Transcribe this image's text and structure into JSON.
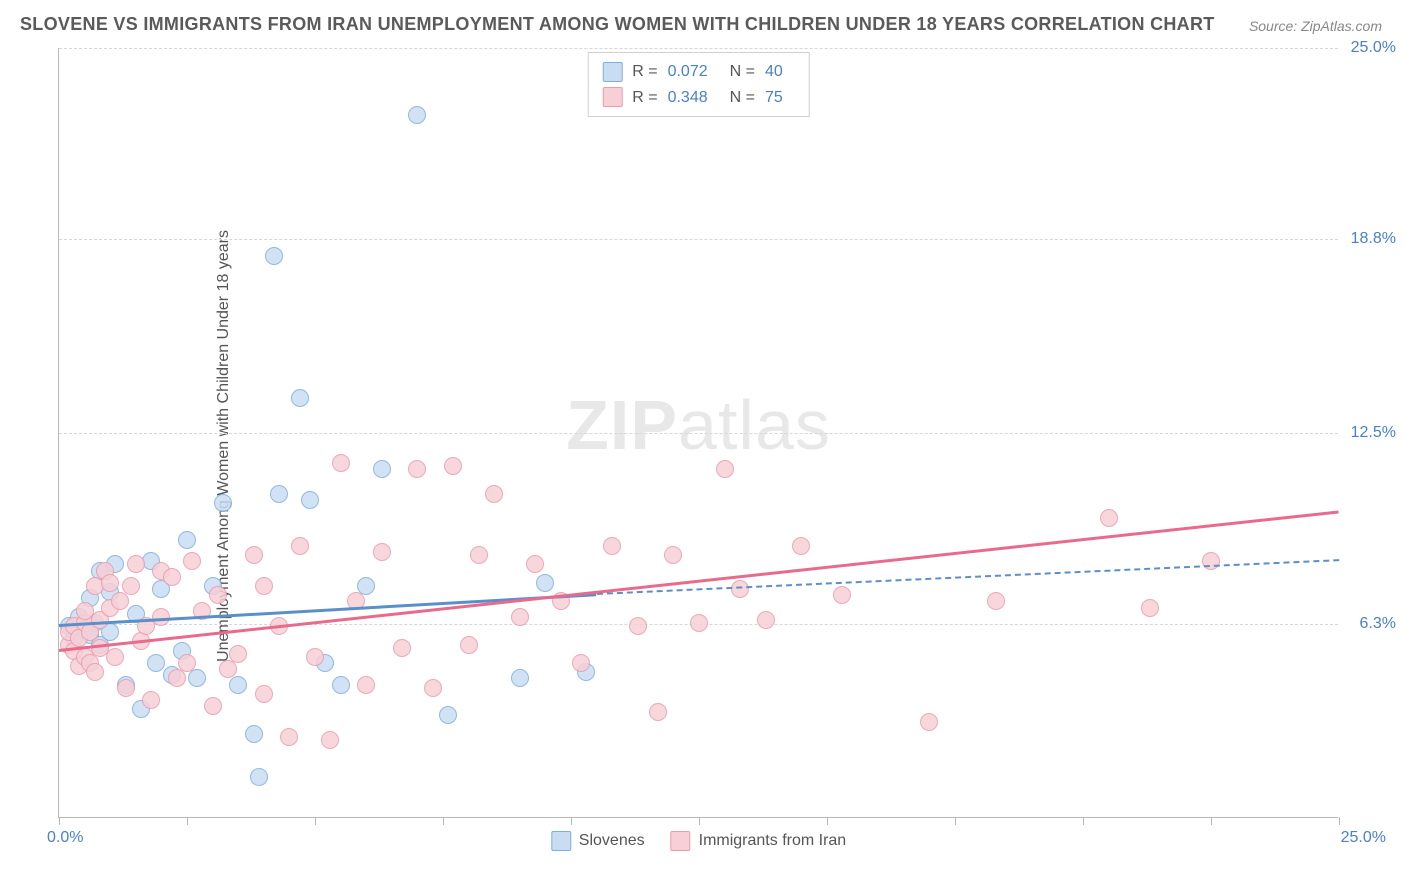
{
  "title": "SLOVENE VS IMMIGRANTS FROM IRAN UNEMPLOYMENT AMONG WOMEN WITH CHILDREN UNDER 18 YEARS CORRELATION CHART",
  "source": "Source: ZipAtlas.com",
  "y_axis_label": "Unemployment Among Women with Children Under 18 years",
  "watermark_bold": "ZIP",
  "watermark_rest": "atlas",
  "chart": {
    "type": "scatter",
    "xlim": [
      0,
      25
    ],
    "ylim": [
      0,
      25
    ],
    "x_origin_label": "0.0%",
    "x_max_label": "25.0%",
    "y_ticks": [
      {
        "value": 6.3,
        "label": "6.3%"
      },
      {
        "value": 12.5,
        "label": "12.5%"
      },
      {
        "value": 18.8,
        "label": "18.8%"
      },
      {
        "value": 25.0,
        "label": "25.0%"
      }
    ],
    "x_tick_positions": [
      0,
      2.5,
      5.0,
      7.5,
      10.0,
      12.5,
      15.0,
      17.5,
      20.0,
      22.5,
      25.0
    ],
    "background_color": "#ffffff",
    "grid_color": "#d7d7d7",
    "axis_color": "#b8b8b8",
    "tick_label_color": "#4a7fc9",
    "series": [
      {
        "name": "Slovenes",
        "fill": "#c8ddf2",
        "stroke": "#7faedb",
        "r_value": "0.072",
        "n_value": "40",
        "trend": {
          "x1": 0,
          "y1": 6.3,
          "x2": 10.5,
          "y2": 7.3,
          "dash": false,
          "color": "#5b8fca",
          "width": 3
        },
        "trend_ext": {
          "x1": 10.5,
          "y1": 7.3,
          "x2": 25,
          "y2": 8.4,
          "dash": true,
          "color": "#5b8fca",
          "width": 2
        },
        "points": [
          [
            0.2,
            6.2
          ],
          [
            0.3,
            5.8
          ],
          [
            0.4,
            6.5
          ],
          [
            0.5,
            6.1
          ],
          [
            0.6,
            5.9
          ],
          [
            0.6,
            7.1
          ],
          [
            0.7,
            6.3
          ],
          [
            0.8,
            5.6
          ],
          [
            0.8,
            8.0
          ],
          [
            1.0,
            6.0
          ],
          [
            1.0,
            7.3
          ],
          [
            1.1,
            8.2
          ],
          [
            1.3,
            4.3
          ],
          [
            1.5,
            6.6
          ],
          [
            1.6,
            3.5
          ],
          [
            1.8,
            8.3
          ],
          [
            1.9,
            5.0
          ],
          [
            2.0,
            7.4
          ],
          [
            2.2,
            4.6
          ],
          [
            2.4,
            5.4
          ],
          [
            2.5,
            9.0
          ],
          [
            2.7,
            4.5
          ],
          [
            3.0,
            7.5
          ],
          [
            3.2,
            10.2
          ],
          [
            3.5,
            4.3
          ],
          [
            3.8,
            2.7
          ],
          [
            3.9,
            1.3
          ],
          [
            4.2,
            18.2
          ],
          [
            4.3,
            10.5
          ],
          [
            4.7,
            13.6
          ],
          [
            4.9,
            10.3
          ],
          [
            5.2,
            5.0
          ],
          [
            5.5,
            4.3
          ],
          [
            6.0,
            7.5
          ],
          [
            6.3,
            11.3
          ],
          [
            7.0,
            22.8
          ],
          [
            7.6,
            3.3
          ],
          [
            9.0,
            4.5
          ],
          [
            9.5,
            7.6
          ],
          [
            10.3,
            4.7
          ]
        ]
      },
      {
        "name": "Immigrants from Iran",
        "fill": "#f6cfd7",
        "stroke": "#e99bac",
        "r_value": "0.348",
        "n_value": "75",
        "trend": {
          "x1": 0,
          "y1": 5.5,
          "x2": 25,
          "y2": 10.0,
          "dash": false,
          "color": "#e86b8c",
          "width": 3
        },
        "points": [
          [
            0.2,
            5.6
          ],
          [
            0.2,
            6.0
          ],
          [
            0.3,
            5.4
          ],
          [
            0.3,
            6.2
          ],
          [
            0.4,
            5.8
          ],
          [
            0.4,
            4.9
          ],
          [
            0.5,
            6.3
          ],
          [
            0.5,
            5.2
          ],
          [
            0.5,
            6.7
          ],
          [
            0.6,
            6.0
          ],
          [
            0.6,
            5.0
          ],
          [
            0.7,
            7.5
          ],
          [
            0.7,
            4.7
          ],
          [
            0.8,
            6.4
          ],
          [
            0.8,
            5.5
          ],
          [
            0.9,
            8.0
          ],
          [
            1.0,
            6.8
          ],
          [
            1.0,
            7.6
          ],
          [
            1.1,
            5.2
          ],
          [
            1.2,
            7.0
          ],
          [
            1.3,
            4.2
          ],
          [
            1.4,
            7.5
          ],
          [
            1.5,
            8.2
          ],
          [
            1.6,
            5.7
          ],
          [
            1.7,
            6.2
          ],
          [
            1.8,
            3.8
          ],
          [
            2.0,
            8.0
          ],
          [
            2.0,
            6.5
          ],
          [
            2.2,
            7.8
          ],
          [
            2.3,
            4.5
          ],
          [
            2.5,
            5.0
          ],
          [
            2.6,
            8.3
          ],
          [
            2.8,
            6.7
          ],
          [
            3.0,
            3.6
          ],
          [
            3.1,
            7.2
          ],
          [
            3.3,
            4.8
          ],
          [
            3.5,
            5.3
          ],
          [
            3.8,
            8.5
          ],
          [
            4.0,
            4.0
          ],
          [
            4.0,
            7.5
          ],
          [
            4.3,
            6.2
          ],
          [
            4.5,
            2.6
          ],
          [
            4.7,
            8.8
          ],
          [
            5.0,
            5.2
          ],
          [
            5.3,
            2.5
          ],
          [
            5.5,
            11.5
          ],
          [
            5.8,
            7.0
          ],
          [
            6.0,
            4.3
          ],
          [
            6.3,
            8.6
          ],
          [
            6.7,
            5.5
          ],
          [
            7.0,
            11.3
          ],
          [
            7.3,
            4.2
          ],
          [
            7.7,
            11.4
          ],
          [
            8.0,
            5.6
          ],
          [
            8.2,
            8.5
          ],
          [
            8.5,
            10.5
          ],
          [
            9.0,
            6.5
          ],
          [
            9.3,
            8.2
          ],
          [
            9.8,
            7.0
          ],
          [
            10.2,
            5.0
          ],
          [
            10.8,
            8.8
          ],
          [
            11.3,
            6.2
          ],
          [
            11.7,
            3.4
          ],
          [
            12.0,
            8.5
          ],
          [
            12.5,
            6.3
          ],
          [
            13.0,
            11.3
          ],
          [
            13.3,
            7.4
          ],
          [
            13.8,
            6.4
          ],
          [
            14.5,
            8.8
          ],
          [
            15.3,
            7.2
          ],
          [
            17.0,
            3.1
          ],
          [
            18.3,
            7.0
          ],
          [
            20.5,
            9.7
          ],
          [
            21.3,
            6.8
          ],
          [
            22.5,
            8.3
          ]
        ]
      }
    ]
  },
  "legend_bottom": [
    {
      "label": "Slovenes",
      "fill": "#c8ddf2",
      "stroke": "#7faedb"
    },
    {
      "label": "Immigrants from Iran",
      "fill": "#f6cfd7",
      "stroke": "#e99bac"
    }
  ]
}
